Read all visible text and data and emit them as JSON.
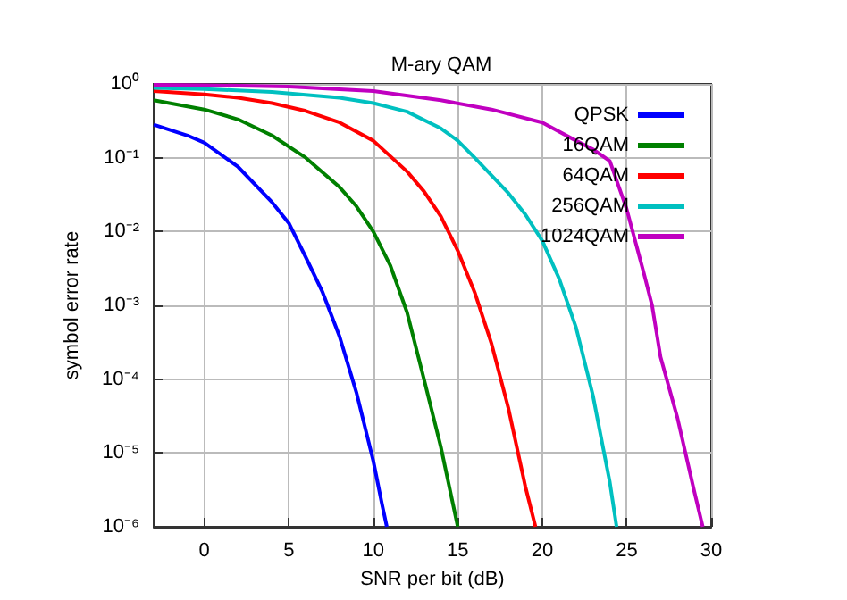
{
  "chart_data": {
    "type": "line",
    "title": "M-ary QAM",
    "xlabel": "SNR per bit (dB)",
    "ylabel": "symbol error rate",
    "log": "y",
    "grid": true,
    "legend": "top right",
    "marker": "none",
    "line_style": "solid",
    "xlim": [
      -3,
      30
    ],
    "xticks": [
      0,
      5,
      10,
      15,
      20,
      25,
      30
    ],
    "ylim": [
      1e-06,
      1
    ],
    "yticks": [
      {
        "value": 1e-06,
        "label": "10⁻⁶"
      },
      {
        "value": 1e-05,
        "label": "10⁻⁵"
      },
      {
        "value": 0.0001,
        "label": "10⁻⁴"
      },
      {
        "value": 0.001,
        "label": "10⁻³"
      },
      {
        "value": 0.01,
        "label": "10⁻²"
      },
      {
        "value": 0.1,
        "label": "10⁻¹"
      },
      {
        "value": 1,
        "label": "10⁰"
      }
    ],
    "series": [
      {
        "name": "QPSK",
        "color": "#0000ff",
        "x": [
          -3,
          -1,
          0,
          2,
          4,
          5,
          6,
          7,
          8,
          9,
          10,
          10.5,
          10.8
        ],
        "values": [
          0.28,
          0.2,
          0.16,
          0.075,
          0.025,
          0.013,
          0.0045,
          0.0015,
          0.00038,
          6.6e-05,
          7.8e-06,
          2.1e-06,
          1e-06
        ]
      },
      {
        "name": "16QAM",
        "color": "#008000",
        "x": [
          -3,
          0,
          2,
          4,
          6,
          8,
          9,
          10,
          11,
          12,
          13,
          14,
          15
        ],
        "values": [
          0.6,
          0.45,
          0.33,
          0.2,
          0.1,
          0.04,
          0.022,
          0.01,
          0.0035,
          0.0008,
          0.0001,
          1.2e-05,
          1e-06
        ]
      },
      {
        "name": "64QAM",
        "color": "#ff0000",
        "x": [
          -3,
          0,
          2,
          4,
          6,
          8,
          10,
          12,
          13,
          14,
          15,
          16,
          17,
          18,
          19,
          19.6
        ],
        "values": [
          0.8,
          0.72,
          0.65,
          0.55,
          0.43,
          0.3,
          0.17,
          0.065,
          0.035,
          0.016,
          0.0055,
          0.0015,
          0.0003,
          4e-05,
          3.5e-06,
          1e-06
        ]
      },
      {
        "name": "256QAM",
        "color": "#00c0c0",
        "x": [
          -3,
          0,
          4,
          8,
          10,
          12,
          14,
          15,
          16,
          18,
          19,
          20,
          21,
          22,
          23,
          24,
          24.4
        ],
        "values": [
          0.88,
          0.85,
          0.78,
          0.65,
          0.55,
          0.42,
          0.25,
          0.17,
          0.1,
          0.033,
          0.017,
          0.0075,
          0.0023,
          0.0005,
          6e-05,
          4e-06,
          1e-06
        ]
      },
      {
        "name": "1024QAM",
        "color": "#c000c0",
        "x": [
          -3,
          0,
          5,
          10,
          14,
          17,
          20,
          22,
          23,
          24,
          25,
          26,
          26.5,
          27,
          28,
          29,
          29.5
        ],
        "values": [
          0.97,
          0.96,
          0.92,
          0.8,
          0.6,
          0.45,
          0.3,
          0.17,
          0.13,
          0.09,
          0.02,
          0.0028,
          0.001,
          0.0002,
          3e-05,
          3e-06,
          1e-06
        ]
      }
    ]
  }
}
